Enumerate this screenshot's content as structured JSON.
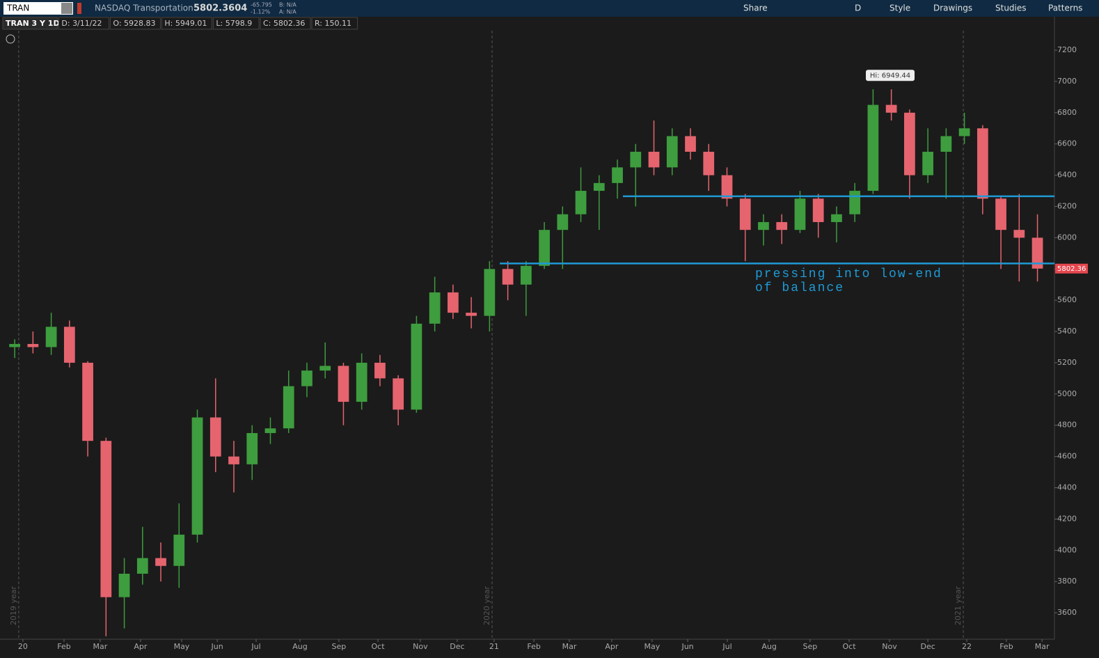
{
  "ui": {
    "symbol": "TRAN",
    "description": "NASDAQ Transportation",
    "last": "5802.3604",
    "change": "-65.795",
    "change_pct": "-1.12%",
    "bid": "B: N/A",
    "ask": "A: N/A",
    "buttons": [
      "Share",
      "D",
      "Style",
      "Drawings",
      "Studies",
      "Patterns"
    ],
    "info": [
      "TRAN 3 Y 1D",
      "D: 3/11/22",
      "O: 5928.83",
      "H: 5949.01",
      "L: 5798.9",
      "C: 5802.36",
      "R: 150.11"
    ]
  },
  "chart_data": {
    "type": "candlestick",
    "up_color": "#3e9d3e",
    "down_color": "#e5646e",
    "categories": [
      null,
      null,
      null,
      null,
      null,
      null,
      null,
      null,
      null,
      null,
      null,
      null,
      null,
      null,
      null,
      null,
      null,
      null,
      null,
      null,
      null,
      null,
      null,
      null,
      null,
      null,
      null,
      null,
      null,
      null,
      null,
      null,
      null,
      null,
      null,
      null,
      null,
      null,
      null,
      null,
      null,
      null,
      null,
      null,
      null,
      null,
      null,
      null,
      null,
      null,
      null,
      null,
      null,
      null,
      null,
      null,
      null
    ],
    "open": [
      5300,
      5320,
      5300,
      5430,
      5200,
      4700,
      3700,
      3850,
      3950,
      3900,
      4100,
      4850,
      4600,
      4550,
      4750,
      4780,
      5050,
      5150,
      5180,
      4950,
      5200,
      5100,
      4900,
      5450,
      5650,
      5520,
      5500,
      5800,
      5700,
      5820,
      6050,
      6150,
      6300,
      6350,
      6450,
      6550,
      6450,
      6650,
      6550,
      6400,
      6250,
      6050,
      6100,
      6050,
      6250,
      6100,
      6150,
      6300,
      6850,
      6800,
      6400,
      6550,
      6650,
      6700,
      6250,
      6050,
      6000
    ],
    "high": [
      5350,
      5400,
      5520,
      5470,
      5210,
      4720,
      3950,
      4150,
      4050,
      4300,
      4900,
      5100,
      4700,
      4800,
      4850,
      5150,
      5200,
      5330,
      5200,
      5260,
      5250,
      5120,
      5500,
      5750,
      5700,
      5620,
      5850,
      5850,
      5850,
      6100,
      6200,
      6450,
      6400,
      6500,
      6600,
      6750,
      6700,
      6700,
      6600,
      6450,
      6280,
      6150,
      6150,
      6300,
      6280,
      6200,
      6350,
      6950,
      6949.44,
      6820,
      6700,
      6700,
      6800,
      6720,
      6270,
      6280,
      6150
    ],
    "low": [
      5230,
      5260,
      5250,
      5170,
      4600,
      3450,
      3500,
      3780,
      3800,
      3760,
      4050,
      4500,
      4370,
      4450,
      4680,
      4750,
      4980,
      5100,
      4800,
      4900,
      5050,
      4800,
      4880,
      5400,
      5480,
      5420,
      5400,
      5600,
      5500,
      5800,
      5800,
      6100,
      6050,
      6250,
      6200,
      6400,
      6400,
      6500,
      6300,
      6200,
      5850,
      5950,
      5960,
      6030,
      6000,
      5970,
      6100,
      6280,
      6750,
      6250,
      6350,
      6250,
      6600,
      6150,
      5800,
      5720,
      5720
    ],
    "close": [
      5320,
      5300,
      5430,
      5200,
      4700,
      3700,
      3850,
      3950,
      3900,
      4100,
      4850,
      4600,
      4550,
      4750,
      4780,
      5050,
      5150,
      5180,
      4950,
      5200,
      5100,
      4900,
      5450,
      5650,
      5520,
      5500,
      5800,
      5700,
      5820,
      6050,
      6150,
      6300,
      6350,
      6450,
      6550,
      6450,
      6650,
      6550,
      6400,
      6250,
      6050,
      6100,
      6050,
      6250,
      6100,
      6150,
      6300,
      6850,
      6800,
      6400,
      6550,
      6650,
      6700,
      6250,
      6050,
      6000,
      5802.36
    ],
    "ylim": [
      3431,
      7325
    ],
    "yticks": [
      3600,
      3800,
      4000,
      4200,
      4400,
      4600,
      4800,
      5000,
      5200,
      5400,
      5600,
      5800,
      6000,
      6200,
      6400,
      6600,
      6800,
      7000,
      7200
    ],
    "xticks": [
      {
        "value": 0.45,
        "label": "20"
      },
      {
        "value": 2.7,
        "label": "Feb"
      },
      {
        "value": 4.68,
        "label": "Mar"
      },
      {
        "value": 6.89,
        "label": "Apr"
      },
      {
        "value": 9.14,
        "label": "May"
      },
      {
        "value": 11.09,
        "label": "Jun"
      },
      {
        "value": 13.22,
        "label": "Jul"
      },
      {
        "value": 15.62,
        "label": "Aug"
      },
      {
        "value": 17.75,
        "label": "Sep"
      },
      {
        "value": 19.89,
        "label": "Oct"
      },
      {
        "value": 22.21,
        "label": "Nov"
      },
      {
        "value": 24.23,
        "label": "Dec"
      },
      {
        "value": 26.25,
        "label": "21"
      },
      {
        "value": 28.43,
        "label": "Feb"
      },
      {
        "value": 30.37,
        "label": "Mar"
      },
      {
        "value": 32.69,
        "label": "Apr"
      },
      {
        "value": 34.9,
        "label": "May"
      },
      {
        "value": 36.85,
        "label": "Jun"
      },
      {
        "value": 39.02,
        "label": "Jul"
      },
      {
        "value": 41.31,
        "label": "Aug"
      },
      {
        "value": 43.55,
        "label": "Sep"
      },
      {
        "value": 45.69,
        "label": "Oct"
      },
      {
        "value": 47.9,
        "label": "Nov"
      },
      {
        "value": 50.0,
        "label": "Dec"
      },
      {
        "value": 52.13,
        "label": "22"
      },
      {
        "value": 54.3,
        "label": "Feb"
      },
      {
        "value": 56.25,
        "label": "Mar"
      }
    ],
    "year_lines": [
      {
        "value": 0.22,
        "label": "2019 year"
      },
      {
        "value": 26.14,
        "label": "2020 year"
      },
      {
        "value": 51.94,
        "label": "2021 year"
      }
    ],
    "levels": [
      {
        "value": 6265,
        "start": 33.3,
        "color": "#1e9ad6"
      },
      {
        "value": 5835,
        "start": 26.56,
        "color": "#1e9ad6"
      }
    ],
    "annotation": {
      "lines": [
        "pressing into low-end",
        "of balance"
      ],
      "color": "#1e9ad6"
    },
    "high_label": {
      "text": "Hi: 6949.44",
      "value": 6949.44,
      "x": 47.9
    },
    "last_price": {
      "value": 5802.36,
      "label": "5802.36"
    }
  }
}
